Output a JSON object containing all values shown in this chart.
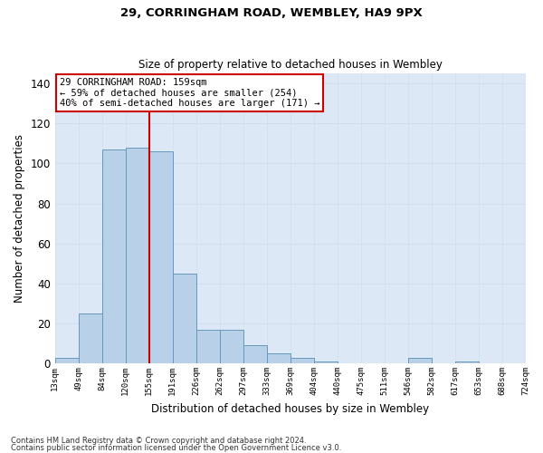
{
  "title1": "29, CORRINGHAM ROAD, WEMBLEY, HA9 9PX",
  "title2": "Size of property relative to detached houses in Wembley",
  "xlabel": "Distribution of detached houses by size in Wembley",
  "ylabel": "Number of detached properties",
  "bar_values": [
    3,
    25,
    107,
    108,
    106,
    45,
    17,
    17,
    9,
    5,
    3,
    1,
    0,
    0,
    0,
    3,
    0,
    1,
    0,
    0
  ],
  "bin_labels": [
    "13sqm",
    "49sqm",
    "84sqm",
    "120sqm",
    "155sqm",
    "191sqm",
    "226sqm",
    "262sqm",
    "297sqm",
    "333sqm",
    "369sqm",
    "404sqm",
    "440sqm",
    "475sqm",
    "511sqm",
    "546sqm",
    "582sqm",
    "617sqm",
    "653sqm",
    "688sqm",
    "724sqm"
  ],
  "bar_color": "#b8d0e8",
  "bar_edge_color": "#6699bb",
  "grid_color": "#d0dff0",
  "bg_color": "#dce8f5",
  "vline_color": "#cc0000",
  "annotation_text": "29 CORRINGHAM ROAD: 159sqm\n← 59% of detached houses are smaller (254)\n40% of semi-detached houses are larger (171) →",
  "annotation_box_color": "white",
  "annotation_box_edge_color": "#cc0000",
  "ylim_max": 145,
  "yticks": [
    0,
    20,
    40,
    60,
    80,
    100,
    120,
    140
  ],
  "footnote1": "Contains HM Land Registry data © Crown copyright and database right 2024.",
  "footnote2": "Contains public sector information licensed under the Open Government Licence v3.0."
}
